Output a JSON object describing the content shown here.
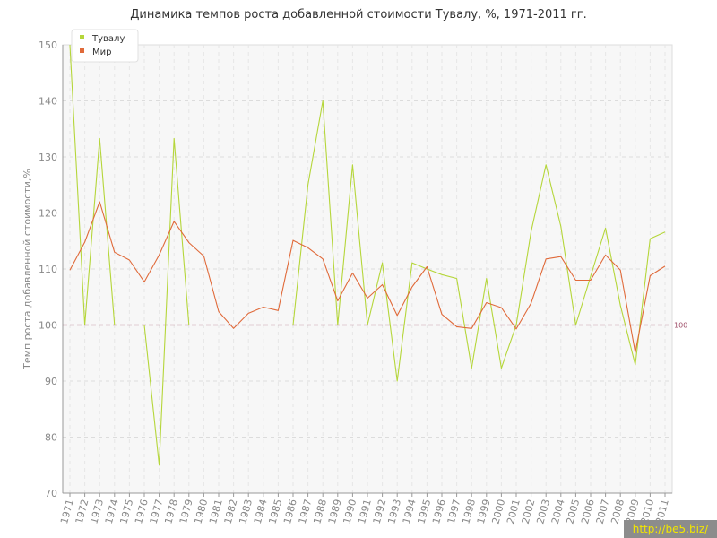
{
  "chart_data": {
    "type": "line",
    "title": "Динамика темпов роста добавленной стоимости Тувалу, %, 1971-2011 гг.",
    "xlabel": "",
    "ylabel": "Темп роста добавленной стоимости,%",
    "ylim": [
      70,
      150
    ],
    "yticks": [
      70,
      80,
      90,
      100,
      110,
      120,
      130,
      140,
      150
    ],
    "grid": true,
    "legend_position": "top-left",
    "categories": [
      "1971",
      "1972",
      "1973",
      "1974",
      "1975",
      "1976",
      "1977",
      "1978",
      "1979",
      "1980",
      "1981",
      "1982",
      "1983",
      "1984",
      "1985",
      "1986",
      "1987",
      "1988",
      "1989",
      "1990",
      "1991",
      "1992",
      "1993",
      "1994",
      "1995",
      "1996",
      "1997",
      "1998",
      "1999",
      "2000",
      "2001",
      "2002",
      "2003",
      "2004",
      "2005",
      "2006",
      "2007",
      "2008",
      "2009",
      "2010",
      "2011"
    ],
    "series": [
      {
        "name": "Тувалу",
        "color": "#b5d63a",
        "values": [
          150,
          100,
          133.3,
          100,
          100,
          100,
          75,
          133.3,
          100,
          100,
          100,
          100,
          100,
          100,
          100,
          100,
          125,
          140,
          100,
          128.6,
          100,
          111.1,
          90,
          111.1,
          110,
          109,
          108.3,
          92.3,
          108.3,
          92.3,
          100,
          116.7,
          128.6,
          117.6,
          100,
          108.7,
          117.3,
          103.5,
          92.9,
          115.4,
          116.6
        ]
      },
      {
        "name": "Мир",
        "color": "#e06a3a",
        "values": [
          109.8,
          114.8,
          122,
          113,
          111.6,
          107.7,
          112.5,
          118.5,
          114.7,
          112.3,
          102.4,
          99.4,
          102.1,
          103.2,
          102.6,
          115.1,
          113.8,
          111.8,
          104.3,
          109.3,
          104.8,
          107.2,
          101.7,
          106.8,
          110.4,
          101.9,
          99.7,
          99.4,
          104,
          103.1,
          99.3,
          103.9,
          111.8,
          112.2,
          108,
          108,
          112.5,
          109.8,
          95.1,
          108.8,
          110.5
        ]
      }
    ],
    "reference_line": {
      "value": 100,
      "label": "100",
      "color": "#a0506a"
    }
  },
  "watermark": "http://be5.biz/"
}
